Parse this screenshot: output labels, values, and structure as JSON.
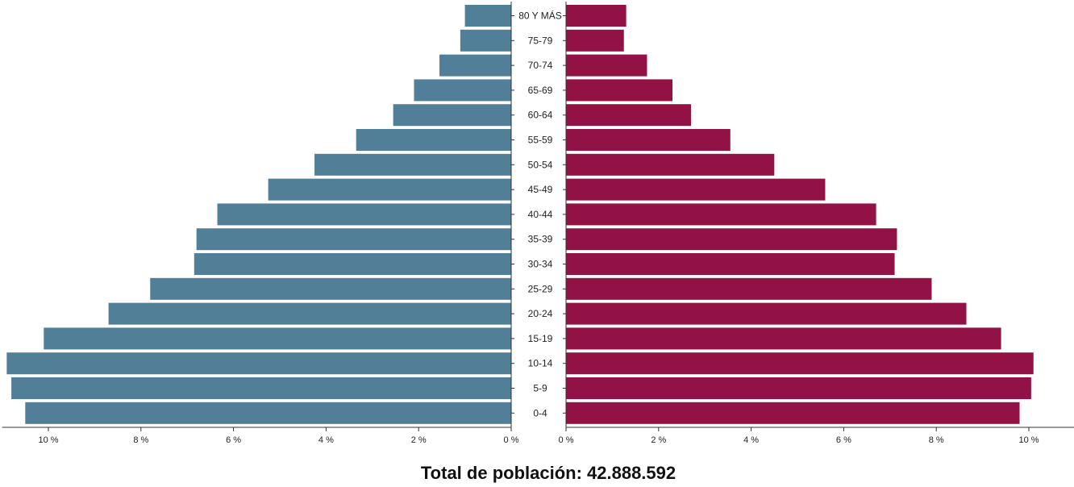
{
  "chart_data": {
    "type": "bar",
    "orientation": "horizontal",
    "subtype": "population-pyramid",
    "categories": [
      "80 Y MÁS",
      "75-79",
      "70-74",
      "65-69",
      "60-64",
      "55-59",
      "50-54",
      "45-49",
      "40-44",
      "35-39",
      "30-34",
      "25-29",
      "20-24",
      "15-19",
      "10-14",
      "5-9",
      "0-4"
    ],
    "series": [
      {
        "side": "left",
        "color": "#527f98",
        "values": [
          1.0,
          1.1,
          1.55,
          2.1,
          2.55,
          3.35,
          4.25,
          5.25,
          6.35,
          6.8,
          6.85,
          7.8,
          8.7,
          10.1,
          10.9,
          10.8,
          10.5
        ]
      },
      {
        "side": "right",
        "color": "#921246",
        "values": [
          1.3,
          1.25,
          1.75,
          2.3,
          2.7,
          3.55,
          4.5,
          5.6,
          6.7,
          7.15,
          7.1,
          7.9,
          8.65,
          9.4,
          10.1,
          10.05,
          9.8
        ]
      }
    ],
    "xlim": [
      0,
      11
    ],
    "x_ticks": [
      0,
      2,
      4,
      6,
      8,
      10
    ],
    "x_tick_labels": [
      "0 %",
      "2 %",
      "4 %",
      "6 %",
      "8 %",
      "10 %"
    ],
    "grid": false,
    "legend": "none",
    "total_label": "Total de población: 42.888.592"
  }
}
